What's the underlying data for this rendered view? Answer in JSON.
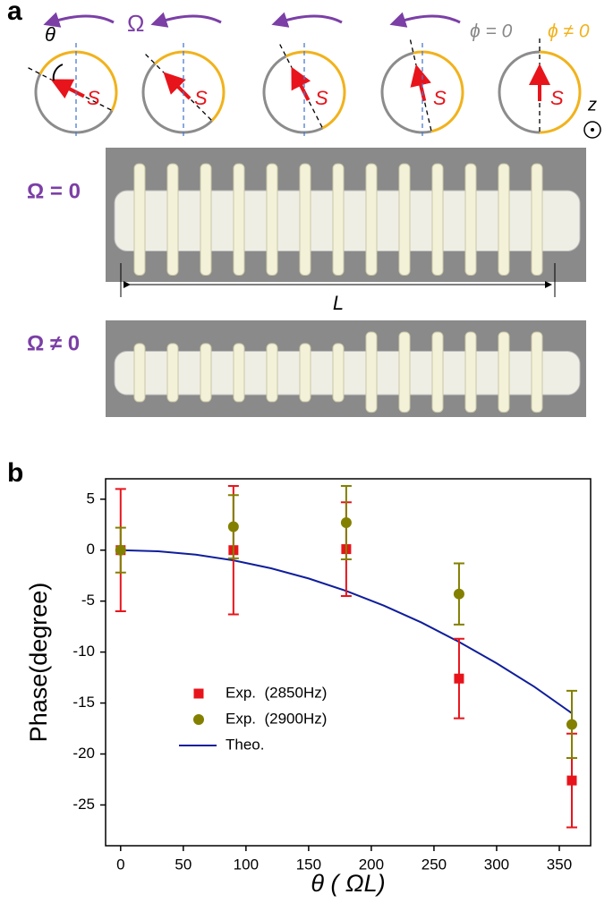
{
  "panel_a": {
    "label": "a",
    "omega": "Ω",
    "theta": "θ",
    "spin_labels": [
      "S",
      "S",
      "S",
      "S",
      "S"
    ],
    "phi_zero": "ϕ = 0",
    "phi_nonzero": "ϕ ≠ 0",
    "z_out": "z",
    "z_axis": "z",
    "omega_zero": "Ω = 0",
    "omega_nonzero": "Ω ≠ 0",
    "length": "L"
  },
  "panel_b": {
    "label": "b"
  },
  "chart_data": {
    "type": "scatter",
    "xlabel": "θ ( ΩL)",
    "ylabel": "Phase(degree)",
    "xlim": [
      -12,
      375
    ],
    "ylim": [
      -29,
      7
    ],
    "xticks": [
      0,
      50,
      100,
      150,
      200,
      250,
      300,
      350
    ],
    "yticks": [
      5,
      0,
      -5,
      -10,
      -15,
      -20,
      -25
    ],
    "grid": false,
    "legend": "lower-left",
    "series": [
      {
        "name": "Exp.  (2850Hz)",
        "type": "scatter",
        "marker": "square",
        "color": "#e8141b",
        "x": [
          0,
          90,
          180,
          270,
          360
        ],
        "values": [
          0,
          0,
          0.1,
          -12.6,
          -22.6
        ],
        "errors": [
          6,
          6.3,
          4.6,
          3.9,
          4.6
        ]
      },
      {
        "name": "Exp.  (2900Hz)",
        "type": "scatter",
        "marker": "circle",
        "color": "#838000",
        "x": [
          0,
          90,
          180,
          270,
          360
        ],
        "values": [
          0,
          2.3,
          2.7,
          -4.3,
          -17.1
        ],
        "errors": [
          2.2,
          3.1,
          3.6,
          3.0,
          3.3
        ]
      },
      {
        "name": "Theo.",
        "type": "line",
        "color": "#0f1e9c",
        "x": [
          0,
          30,
          60,
          90,
          120,
          150,
          180,
          210,
          240,
          270,
          300,
          330,
          360
        ],
        "values": [
          0,
          -0.11,
          -0.44,
          -1.0,
          -1.78,
          -2.78,
          -4.0,
          -5.44,
          -7.1,
          -9.0,
          -11.1,
          -13.4,
          -16.0
        ]
      }
    ]
  }
}
